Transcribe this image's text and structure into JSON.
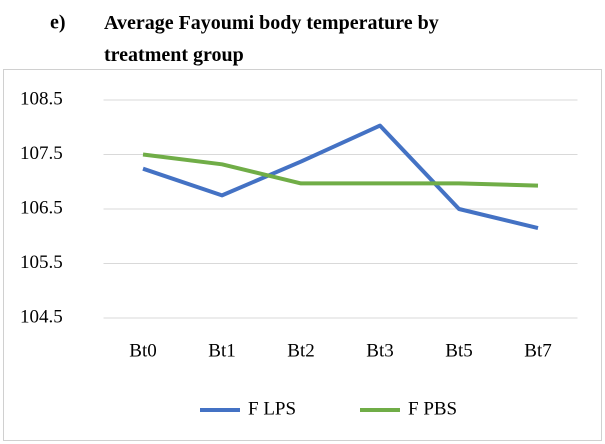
{
  "chart_data": {
    "type": "line",
    "label": "e)",
    "title": "Average Fayoumi body temperature by treatment group",
    "categories": [
      "Bt0",
      "Bt1",
      "Bt2",
      "Bt3",
      "Bt5",
      "Bt7"
    ],
    "series": [
      {
        "name": "F LPS",
        "color": "#4472c4",
        "values": [
          107.24,
          106.75,
          107.37,
          108.03,
          106.5,
          106.15
        ]
      },
      {
        "name": "F PBS",
        "color": "#70ad47",
        "values": [
          107.5,
          107.32,
          106.97,
          106.97,
          106.97,
          106.93
        ]
      }
    ],
    "ylim": [
      104.5,
      108.5
    ],
    "yticks": [
      104.5,
      105.5,
      106.5,
      107.5,
      108.5
    ],
    "grid": true,
    "legend": "bottom"
  }
}
